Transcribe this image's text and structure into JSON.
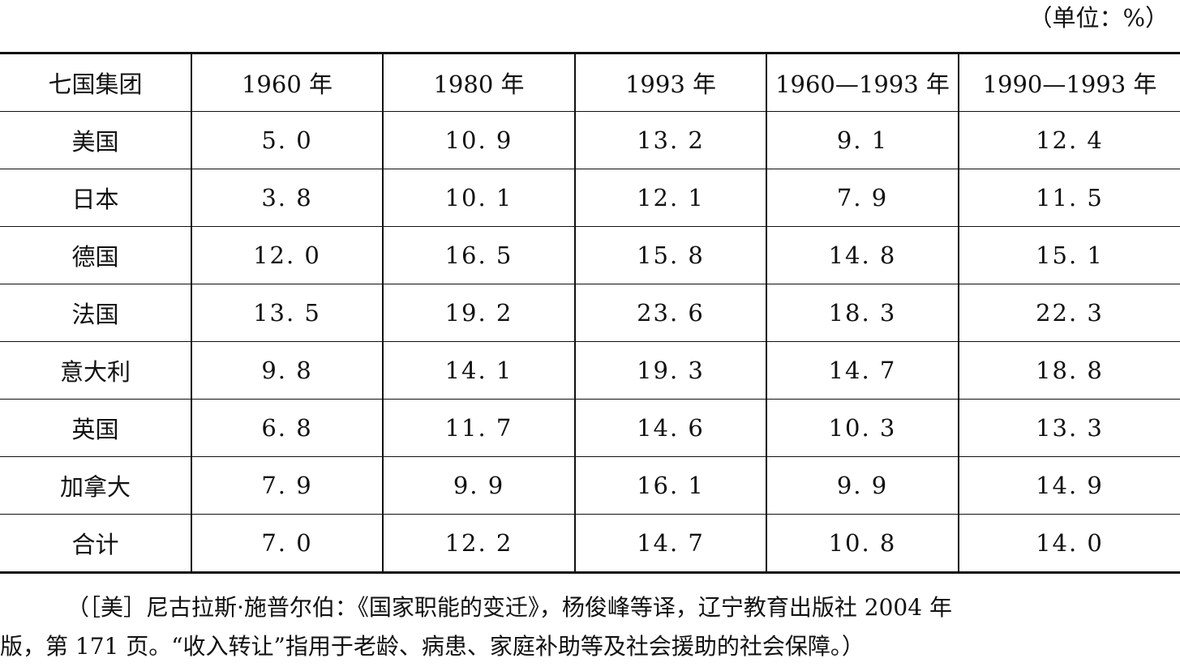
{
  "unit_label": "（单位：%）",
  "table": {
    "headers": [
      "七国集团",
      "1960 年",
      "1980 年",
      "1993 年",
      "1960—1993 年",
      "1990—1993 年"
    ],
    "rows": [
      [
        "美国",
        "5. 0",
        "10. 9",
        "13. 2",
        "9. 1",
        "12. 4"
      ],
      [
        "日本",
        "3. 8",
        "10. 1",
        "12. 1",
        "7. 9",
        "11. 5"
      ],
      [
        "德国",
        "12. 0",
        "16. 5",
        "15. 8",
        "14. 8",
        "15. 1"
      ],
      [
        "法国",
        "13. 5",
        "19. 2",
        "23. 6",
        "18. 3",
        "22. 3"
      ],
      [
        "意大利",
        "9. 8",
        "14. 1",
        "19. 3",
        "14. 7",
        "18. 8"
      ],
      [
        "英国",
        "6. 8",
        "11. 7",
        "14. 6",
        "10. 3",
        "13. 3"
      ],
      [
        "加拿大",
        "7. 9",
        "9. 9",
        "16. 1",
        "9. 9",
        "14. 9"
      ],
      [
        "合计",
        "7. 0",
        "12. 2",
        "14. 7",
        "10. 8",
        "14. 0"
      ]
    ]
  },
  "note": {
    "line1": "（［美］尼古拉斯·施普尔伯：《国家职能的变迁》，杨俊峰等译，辽宁教育出版社 2004 年",
    "line2": "版，第 171 页。“收入转让”指用于老龄、病患、家庭补助等及社会援助的社会保障。）"
  }
}
